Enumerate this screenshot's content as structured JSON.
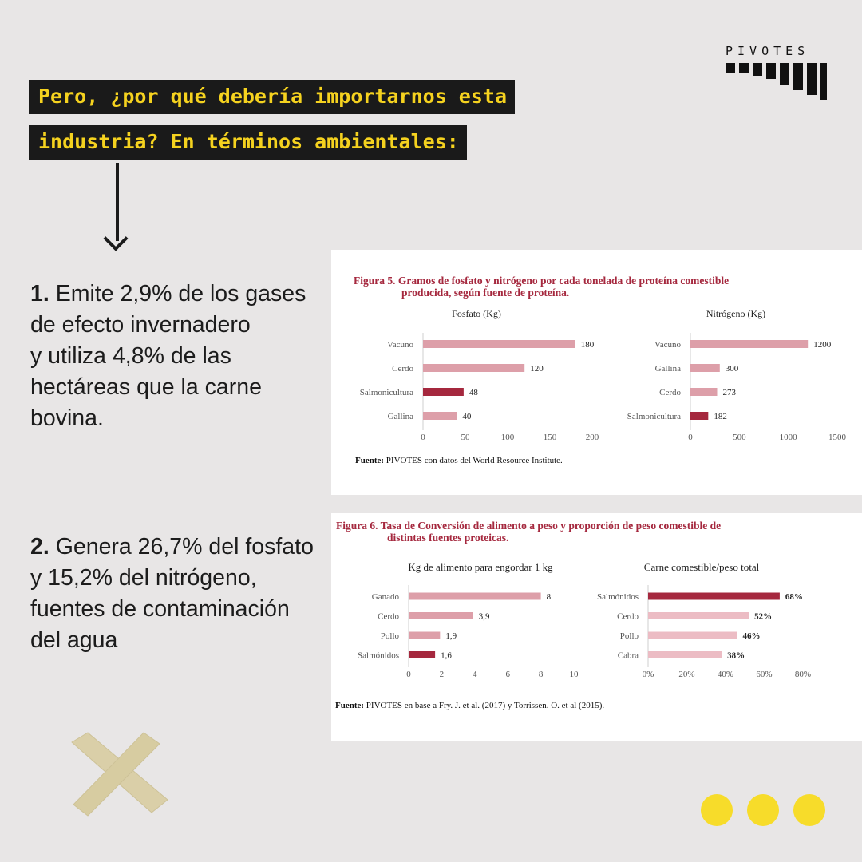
{
  "brand": {
    "name": "PIVOTES"
  },
  "headline": {
    "line1": "Pero, ¿por qué debería importarnos esta",
    "line2": "industria? En términos ambientales:"
  },
  "points": [
    {
      "number": "1.",
      "text_a": " Emite 2,9% de los gases de efecto invernadero",
      "text_b": "y utiliza 4,8% de las hectáreas que la carne bovina."
    },
    {
      "number": "2.",
      "text_a": " Genera 26,7% del fosfato y 15,2% del nitrógeno, fuentes de contaminación del agua",
      "text_b": ""
    }
  ],
  "figure5": {
    "title_line1": "Figura 5. Gramos de fosfato y nitrógeno por cada tonelada de proteína comestible",
    "title_line2": "producida, según fuente de proteína.",
    "source_bold": "Fuente:",
    "source_text": " PIVOTES con datos del World Resource Institute."
  },
  "figure6": {
    "title_line1": "Figura 6. Tasa de Conversión de alimento a peso y proporción de peso comestible de",
    "title_line2": "distintas fuentes proteicas.",
    "source_bold": "Fuente:",
    "source_text": " PIVOTES en base a Fry. J. et al. (2017) y Torrissen. O. et al (2015)."
  },
  "colors": {
    "accent": "#f5d21f",
    "bar_light": "#dd9fa9",
    "bar_dark": "#a5283e",
    "bar_pale": "#ecbcc4",
    "dot": "#f7dc2a"
  },
  "chart_data": [
    {
      "type": "bar",
      "title": "Fosfato (Kg)",
      "categories": [
        "Vacuno",
        "Cerdo",
        "Salmonicultura",
        "Gallina"
      ],
      "values": [
        180,
        120,
        48,
        40
      ],
      "value_labels": [
        "180",
        "120",
        "48",
        "40"
      ],
      "highlight": "Salmonicultura",
      "xlim": [
        0,
        200
      ],
      "xticks": [
        "0",
        "50",
        "100",
        "150",
        "200"
      ]
    },
    {
      "type": "bar",
      "title": "Nitrógeno (Kg)",
      "categories": [
        "Vacuno",
        "Gallina",
        "Cerdo",
        "Salmonicultura"
      ],
      "values": [
        1200,
        300,
        273,
        182
      ],
      "value_labels": [
        "1200",
        "300",
        "273",
        "182"
      ],
      "highlight": "Salmonicultura",
      "xlim": [
        0,
        1500
      ],
      "xticks": [
        "0",
        "500",
        "1000",
        "1500"
      ]
    },
    {
      "type": "bar",
      "title": "Kg de alimento para engordar 1 kg",
      "categories": [
        "Ganado",
        "Cerdo",
        "Pollo",
        "Salmónidos"
      ],
      "values": [
        8,
        3.9,
        1.9,
        1.6
      ],
      "value_labels": [
        "8",
        "3,9",
        "1,9",
        "1,6"
      ],
      "highlight": "Salmónidos",
      "xlim": [
        0,
        10
      ],
      "xticks": [
        "0",
        "2",
        "4",
        "6",
        "8",
        "10"
      ]
    },
    {
      "type": "bar",
      "title": "Carne comestible/peso total",
      "categories": [
        "Salmónidos",
        "Cerdo",
        "Pollo",
        "Cabra"
      ],
      "values": [
        68,
        52,
        46,
        38
      ],
      "value_labels": [
        "68%",
        "52%",
        "46%",
        "38%"
      ],
      "highlight": "Salmónidos",
      "xlim": [
        0,
        80
      ],
      "xticks": [
        "0%",
        "20%",
        "40%",
        "60%",
        "80%"
      ]
    }
  ]
}
